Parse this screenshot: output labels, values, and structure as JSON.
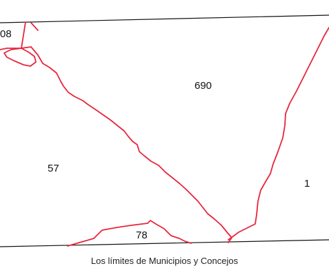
{
  "map": {
    "parcels": [
      "08",
      "690",
      "57",
      "1",
      "78"
    ],
    "boundary_color": "#e8243c",
    "frame_color": "#111111"
  },
  "caption": "Los límites de Municipios y Concejos"
}
